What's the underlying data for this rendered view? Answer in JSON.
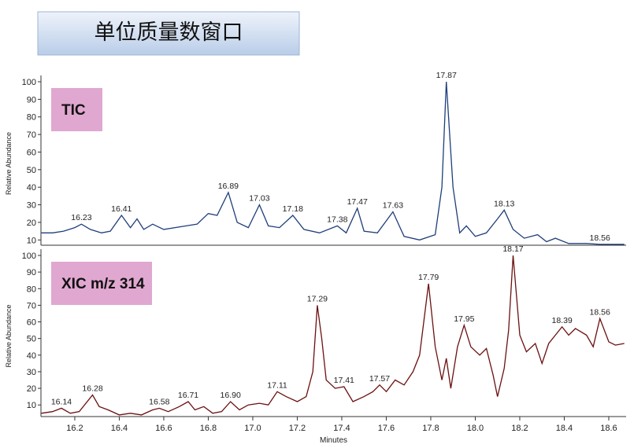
{
  "title": "单位质量数窗口",
  "chart_data": [
    {
      "type": "line",
      "label": "TIC",
      "y_label": "Relative Abundance",
      "color": "#1f3e7a",
      "xlim": [
        16.048,
        18.678
      ],
      "ylim": [
        7,
        100
      ],
      "yticks": [
        10,
        20,
        30,
        40,
        50,
        60,
        70,
        80,
        90,
        100
      ],
      "x": [
        16.05,
        16.1,
        16.15,
        16.2,
        16.23,
        16.27,
        16.32,
        16.36,
        16.41,
        16.45,
        16.48,
        16.51,
        16.55,
        16.6,
        16.7,
        16.75,
        16.8,
        16.84,
        16.89,
        16.93,
        16.98,
        17.03,
        17.07,
        17.12,
        17.18,
        17.23,
        17.3,
        17.38,
        17.42,
        17.47,
        17.5,
        17.56,
        17.63,
        17.68,
        17.75,
        17.82,
        17.85,
        17.87,
        17.9,
        17.93,
        17.96,
        18.0,
        18.05,
        18.1,
        18.13,
        18.17,
        18.22,
        18.28,
        18.32,
        18.36,
        18.42,
        18.5,
        18.56,
        18.67
      ],
      "series": [
        {
          "name": "TIC",
          "values": [
            14,
            14,
            15,
            17,
            19,
            16,
            14,
            15,
            24,
            17,
            22,
            16,
            19,
            16,
            18,
            19,
            25,
            24,
            37,
            20,
            17,
            30,
            18,
            17,
            24,
            16,
            14,
            18,
            14,
            28,
            15,
            14,
            26,
            12,
            10,
            13,
            40,
            100,
            40,
            14,
            18,
            12,
            14,
            22,
            27,
            16,
            11,
            13,
            9,
            11,
            8,
            8,
            7.5,
            7.5
          ]
        }
      ],
      "annotations": [
        {
          "label": "16.23",
          "x": 16.23,
          "y": 19
        },
        {
          "label": "16.41",
          "x": 16.41,
          "y": 24
        },
        {
          "label": "16.89",
          "x": 16.89,
          "y": 37
        },
        {
          "label": "17.03",
          "x": 17.03,
          "y": 30
        },
        {
          "label": "17.18",
          "x": 17.18,
          "y": 24
        },
        {
          "label": "17.38",
          "x": 17.38,
          "y": 18
        },
        {
          "label": "17.47",
          "x": 17.47,
          "y": 28
        },
        {
          "label": "17.63",
          "x": 17.63,
          "y": 26
        },
        {
          "label": "17.87",
          "x": 17.87,
          "y": 100
        },
        {
          "label": "18.13",
          "x": 18.13,
          "y": 27
        },
        {
          "label": "18.56",
          "x": 18.56,
          "y": 7.5
        }
      ]
    },
    {
      "type": "line",
      "label": "XIC m/z 314",
      "y_label": "Relative Abundance",
      "x_label": "Minutes",
      "color": "#6b1010",
      "xlim": [
        16.048,
        18.678
      ],
      "ylim": [
        3,
        100
      ],
      "yticks": [
        10,
        20,
        30,
        40,
        50,
        60,
        70,
        80,
        90,
        100
      ],
      "xticks": [
        {
          "value": 16.2,
          "label": "16.2"
        },
        {
          "value": 16.4,
          "label": "16.4"
        },
        {
          "value": 16.6,
          "label": "16.6"
        },
        {
          "value": 16.8,
          "label": "16.8"
        },
        {
          "value": 17.0,
          "label": "17.0"
        },
        {
          "value": 17.2,
          "label": "17.2"
        },
        {
          "value": 17.4,
          "label": "17.4"
        },
        {
          "value": 17.6,
          "label": "17.6"
        },
        {
          "value": 17.8,
          "label": "17.8"
        },
        {
          "value": 18.0,
          "label": "18.0"
        },
        {
          "value": 18.2,
          "label": "18.2"
        },
        {
          "value": 18.4,
          "label": "18.4"
        },
        {
          "value": 18.6,
          "label": "18.6"
        }
      ],
      "x": [
        16.05,
        16.1,
        16.14,
        16.18,
        16.22,
        16.28,
        16.31,
        16.35,
        16.4,
        16.45,
        16.5,
        16.55,
        16.58,
        16.62,
        16.67,
        16.71,
        16.74,
        16.78,
        16.82,
        16.86,
        16.9,
        16.94,
        16.98,
        17.03,
        17.07,
        17.11,
        17.15,
        17.2,
        17.24,
        17.27,
        17.29,
        17.31,
        17.33,
        17.37,
        17.41,
        17.45,
        17.5,
        17.54,
        17.57,
        17.6,
        17.64,
        17.68,
        17.72,
        17.75,
        17.79,
        17.82,
        17.85,
        17.87,
        17.89,
        17.92,
        17.95,
        17.98,
        18.02,
        18.05,
        18.08,
        18.1,
        18.13,
        18.15,
        18.17,
        18.2,
        18.23,
        18.27,
        18.3,
        18.33,
        18.36,
        18.39,
        18.42,
        18.45,
        18.5,
        18.53,
        18.56,
        18.6,
        18.63,
        18.67
      ],
      "series": [
        {
          "name": "XIC m/z 314",
          "values": [
            5,
            6,
            8,
            5,
            6,
            16,
            9,
            7,
            4,
            5,
            4,
            7,
            8,
            6,
            9,
            12,
            7,
            9,
            5,
            6,
            12,
            7,
            10,
            11,
            10,
            18,
            15,
            12,
            15,
            30,
            70,
            50,
            25,
            20,
            21,
            12,
            15,
            18,
            22,
            18,
            25,
            22,
            30,
            40,
            83,
            45,
            25,
            38,
            20,
            45,
            58,
            45,
            40,
            44,
            28,
            15,
            32,
            55,
            100,
            52,
            42,
            47,
            35,
            47,
            52,
            57,
            52,
            56,
            52,
            45,
            62,
            48,
            46,
            47
          ]
        }
      ],
      "annotations": [
        {
          "label": "16.14",
          "x": 16.14,
          "y": 8
        },
        {
          "label": "16.28",
          "x": 16.28,
          "y": 16
        },
        {
          "label": "16.58",
          "x": 16.58,
          "y": 8
        },
        {
          "label": "16.71",
          "x": 16.71,
          "y": 12
        },
        {
          "label": "16.90",
          "x": 16.9,
          "y": 12
        },
        {
          "label": "17.11",
          "x": 17.11,
          "y": 18
        },
        {
          "label": "17.29",
          "x": 17.29,
          "y": 70
        },
        {
          "label": "17.41",
          "x": 17.41,
          "y": 21
        },
        {
          "label": "17.57",
          "x": 17.57,
          "y": 22
        },
        {
          "label": "17.79",
          "x": 17.79,
          "y": 83
        },
        {
          "label": "17.95",
          "x": 17.95,
          "y": 58
        },
        {
          "label": "18.17",
          "x": 18.17,
          "y": 100
        },
        {
          "label": "18.39",
          "x": 18.39,
          "y": 57
        },
        {
          "label": "18.56",
          "x": 18.56,
          "y": 62
        }
      ]
    }
  ]
}
